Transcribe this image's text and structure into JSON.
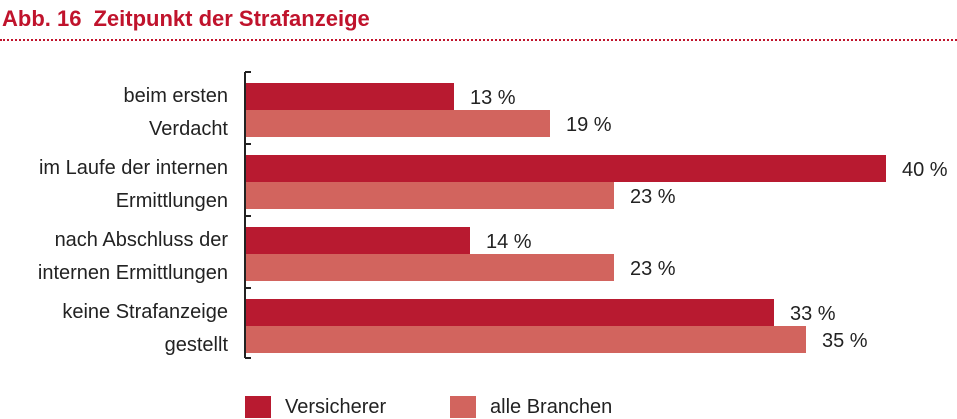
{
  "figure": {
    "number": "Abb. 16",
    "title": "Zeitpunkt der Strafanzeige"
  },
  "colors": {
    "accent": "#c0132c",
    "series_1": "#b81a30",
    "series_2": "#d2645e"
  },
  "chart_data": {
    "type": "bar",
    "orientation": "horizontal",
    "title": "Zeitpunkt der Strafanzeige",
    "categories": [
      [
        "beim ersten",
        "Verdacht"
      ],
      [
        "im Laufe der internen",
        "Ermittlungen"
      ],
      [
        "nach Abschluss der",
        "internen Ermittlungen"
      ],
      [
        "keine Strafanzeige",
        "gestellt"
      ]
    ],
    "series": [
      {
        "name": "Versicherer",
        "values": [
          13,
          40,
          14,
          33
        ],
        "labels": [
          "13 %",
          "40 %",
          "14 %",
          "33 %"
        ]
      },
      {
        "name": "alle Branchen",
        "values": [
          19,
          23,
          23,
          35
        ],
        "labels": [
          "19 %",
          "23 %",
          "23 %",
          "35 %"
        ]
      }
    ],
    "xlim": [
      0,
      40
    ],
    "grid": false,
    "legend": "bottom"
  }
}
